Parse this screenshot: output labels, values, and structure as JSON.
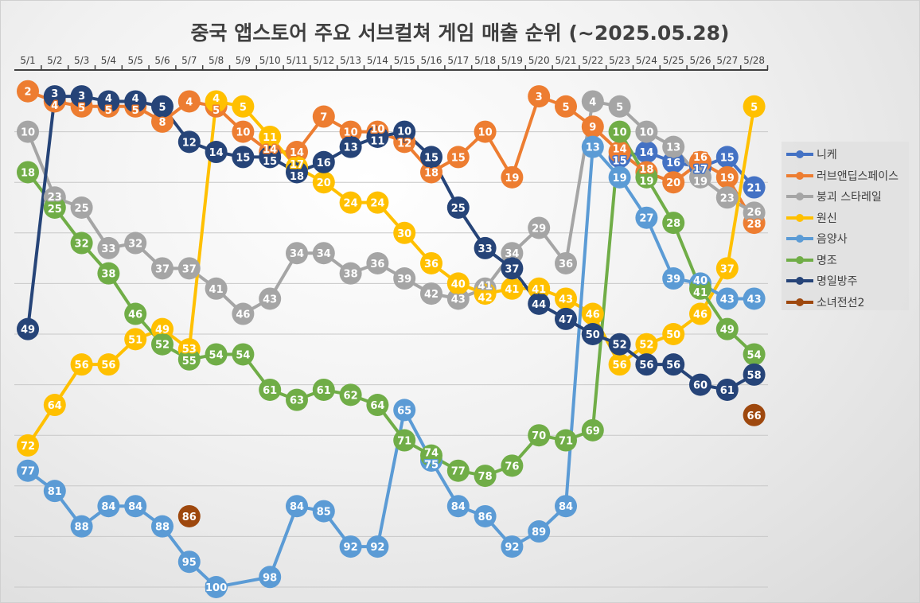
{
  "chart_data": {
    "type": "line",
    "title": "중국 앱스토어 주요 서브컬쳐 게임 매출 순위 (~2025.05.28)",
    "xlabel": "",
    "ylabel": "",
    "categories": [
      "5/1",
      "5/2",
      "5/3",
      "5/4",
      "5/5",
      "5/6",
      "5/7",
      "5/8",
      "5/9",
      "5/10",
      "5/11",
      "5/12",
      "5/13",
      "5/14",
      "5/15",
      "5/16",
      "5/17",
      "5/18",
      "5/19",
      "5/20",
      "5/21",
      "5/22",
      "5/23",
      "5/24",
      "5/25",
      "5/26",
      "5/27",
      "5/28"
    ],
    "ylim": [
      1,
      100
    ],
    "y_reversed": true,
    "grid": true,
    "legend_position": "right",
    "data_labels": true,
    "series": [
      {
        "name": "니케",
        "color": "#4472C4",
        "values": [
          null,
          null,
          null,
          null,
          null,
          null,
          null,
          null,
          null,
          null,
          null,
          null,
          null,
          null,
          null,
          null,
          null,
          null,
          null,
          null,
          null,
          null,
          15,
          14,
          16,
          17,
          15,
          21
        ]
      },
      {
        "name": "러브앤딥스페이스",
        "color": "#ED7D31",
        "values": [
          2,
          4,
          5,
          5,
          5,
          8,
          4,
          5,
          10,
          14,
          14,
          7,
          10,
          10,
          12,
          18,
          15,
          10,
          19,
          3,
          5,
          9,
          14,
          18,
          20,
          16,
          19,
          28
        ]
      },
      {
        "name": "붕괴 스타레일",
        "color": "#A5A5A5",
        "values": [
          10,
          23,
          25,
          33,
          32,
          37,
          37,
          41,
          46,
          43,
          34,
          34,
          38,
          36,
          39,
          42,
          43,
          41,
          34,
          29,
          36,
          4,
          5,
          10,
          13,
          19,
          23,
          26
        ]
      },
      {
        "name": "원신",
        "color": "#FFC000",
        "values": [
          72,
          64,
          56,
          56,
          51,
          49,
          53,
          4,
          5,
          11,
          17,
          20,
          24,
          24,
          30,
          36,
          40,
          42,
          41,
          41,
          43,
          46,
          56,
          52,
          50,
          46,
          37,
          5
        ]
      },
      {
        "name": "음양사",
        "color": "#5B9BD5",
        "values": [
          77,
          81,
          88,
          84,
          84,
          88,
          95,
          100,
          null,
          98,
          84,
          85,
          92,
          92,
          65,
          75,
          84,
          86,
          92,
          89,
          84,
          13,
          19,
          27,
          39,
          40,
          43,
          43
        ]
      },
      {
        "name": "명조",
        "color": "#70AD47",
        "values": [
          18,
          25,
          32,
          38,
          46,
          52,
          55,
          54,
          54,
          61,
          63,
          61,
          62,
          64,
          71,
          74,
          77,
          78,
          76,
          70,
          71,
          69,
          10,
          19,
          28,
          41,
          49,
          54
        ]
      },
      {
        "name": "명일방주",
        "color": "#264478",
        "values": [
          49,
          3,
          3,
          4,
          4,
          5,
          12,
          14,
          15,
          15,
          18,
          16,
          13,
          11,
          10,
          15,
          25,
          33,
          37,
          44,
          47,
          50,
          52,
          56,
          56,
          60,
          61,
          58
        ]
      },
      {
        "name": "소녀전선2",
        "color": "#9E480E",
        "values": [
          null,
          null,
          null,
          null,
          null,
          null,
          86,
          null,
          null,
          null,
          null,
          null,
          null,
          null,
          null,
          null,
          null,
          null,
          null,
          null,
          null,
          null,
          null,
          null,
          null,
          null,
          null,
          66
        ],
        "lines": false
      }
    ]
  }
}
